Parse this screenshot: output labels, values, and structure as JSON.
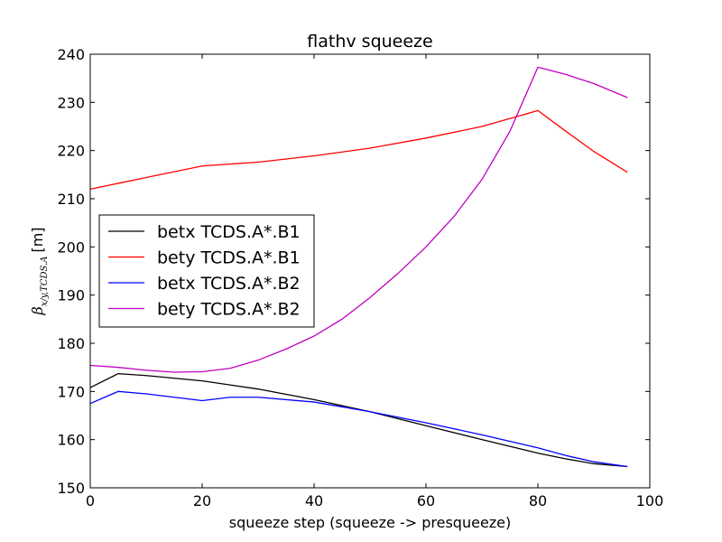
{
  "chart_data": {
    "type": "line",
    "title": "flathv squeeze",
    "xlabel": "squeeze step (squeeze -> presqueeze)",
    "ylabel": {
      "symbol": "β",
      "subscript": "x/y,TCDS.A",
      "unit": "[m]"
    },
    "xlim": [
      0,
      100
    ],
    "ylim": [
      150,
      240
    ],
    "xticks": [
      0,
      20,
      40,
      60,
      80,
      100
    ],
    "yticks": [
      150,
      160,
      170,
      180,
      190,
      200,
      210,
      220,
      230,
      240
    ],
    "grid": false,
    "legend_position": "center-left",
    "series": [
      {
        "name": "betx TCDS.A*.B1",
        "color": "#000000",
        "x": [
          0,
          5,
          10,
          20,
          30,
          40,
          50,
          60,
          70,
          80,
          85,
          90,
          96
        ],
        "y": [
          170.8,
          173.7,
          173.3,
          172.2,
          170.5,
          168.3,
          165.8,
          162.9,
          160.0,
          157.2,
          156.0,
          155.0,
          154.4
        ]
      },
      {
        "name": "bety TCDS.A*.B1",
        "color": "#ff0000",
        "x": [
          0,
          5,
          10,
          20,
          30,
          40,
          50,
          60,
          70,
          80,
          85,
          90,
          96
        ],
        "y": [
          212.0,
          213.2,
          214.4,
          216.8,
          217.6,
          218.9,
          220.5,
          222.6,
          225.0,
          228.3,
          224.0,
          219.8,
          215.5
        ]
      },
      {
        "name": "betx TCDS.A*.B2",
        "color": "#0000ff",
        "x": [
          0,
          5,
          10,
          20,
          25,
          30,
          40,
          50,
          60,
          70,
          80,
          85,
          90,
          96
        ],
        "y": [
          167.5,
          170.0,
          169.5,
          168.1,
          168.8,
          168.8,
          167.8,
          165.8,
          163.5,
          161.0,
          158.3,
          156.7,
          155.4,
          154.4
        ]
      },
      {
        "name": "bety TCDS.A*.B2",
        "color": "#bf00bf",
        "x": [
          0,
          5,
          10,
          15,
          20,
          25,
          30,
          35,
          40,
          45,
          50,
          55,
          60,
          65,
          70,
          75,
          80,
          85,
          90,
          96
        ],
        "y": [
          175.4,
          175.0,
          174.4,
          174.0,
          174.1,
          174.8,
          176.5,
          178.8,
          181.5,
          185.0,
          189.5,
          194.5,
          200.0,
          206.3,
          214.0,
          224.0,
          237.3,
          235.8,
          233.9,
          231.0
        ]
      }
    ]
  }
}
